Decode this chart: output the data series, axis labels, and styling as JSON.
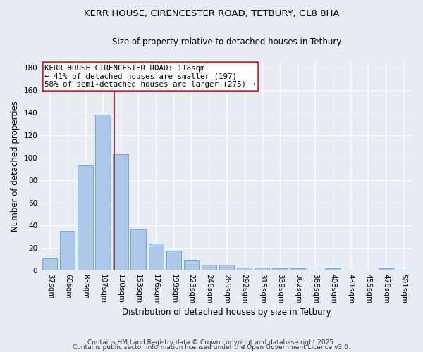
{
  "title1": "KERR HOUSE, CIRENCESTER ROAD, TETBURY, GL8 8HA",
  "title2": "Size of property relative to detached houses in Tetbury",
  "xlabel": "Distribution of detached houses by size in Tetbury",
  "ylabel": "Number of detached properties",
  "categories": [
    "37sqm",
    "60sqm",
    "83sqm",
    "107sqm",
    "130sqm",
    "153sqm",
    "176sqm",
    "199sqm",
    "223sqm",
    "246sqm",
    "269sqm",
    "292sqm",
    "315sqm",
    "339sqm",
    "362sqm",
    "385sqm",
    "408sqm",
    "431sqm",
    "455sqm",
    "478sqm",
    "501sqm"
  ],
  "values": [
    11,
    35,
    93,
    138,
    103,
    37,
    24,
    18,
    9,
    5,
    5,
    3,
    3,
    2,
    2,
    1,
    2,
    0,
    0,
    2,
    1
  ],
  "bar_color": "#aec6e8",
  "bar_edge_color": "#6aadd5",
  "bar_width": 0.85,
  "vline_x_index": 3.62,
  "vline_color": "#b03030",
  "annotation_line1": "KERR HOUSE CIRENCESTER ROAD: 118sqm",
  "annotation_line2": "← 41% of detached houses are smaller (197)",
  "annotation_line3": "58% of semi-detached houses are larger (275) →",
  "annotation_box_color": "#b03030",
  "annotation_box_fill": "#ffffff",
  "annotation_fontsize": 7.8,
  "ylim": [
    0,
    185
  ],
  "yticks": [
    0,
    20,
    40,
    60,
    80,
    100,
    120,
    140,
    160,
    180
  ],
  "background_color": "#e8edf5",
  "grid_color": "#ffffff",
  "footer1": "Contains HM Land Registry data © Crown copyright and database right 2025.",
  "footer2": "Contains public sector information licensed under the Open Government Licence v3.0.",
  "title_fontsize": 9.5,
  "subtitle_fontsize": 8.5,
  "axis_label_fontsize": 8.5,
  "tick_fontsize": 7.5,
  "ylabel_fontsize": 8.5,
  "footer_fontsize": 6.5
}
